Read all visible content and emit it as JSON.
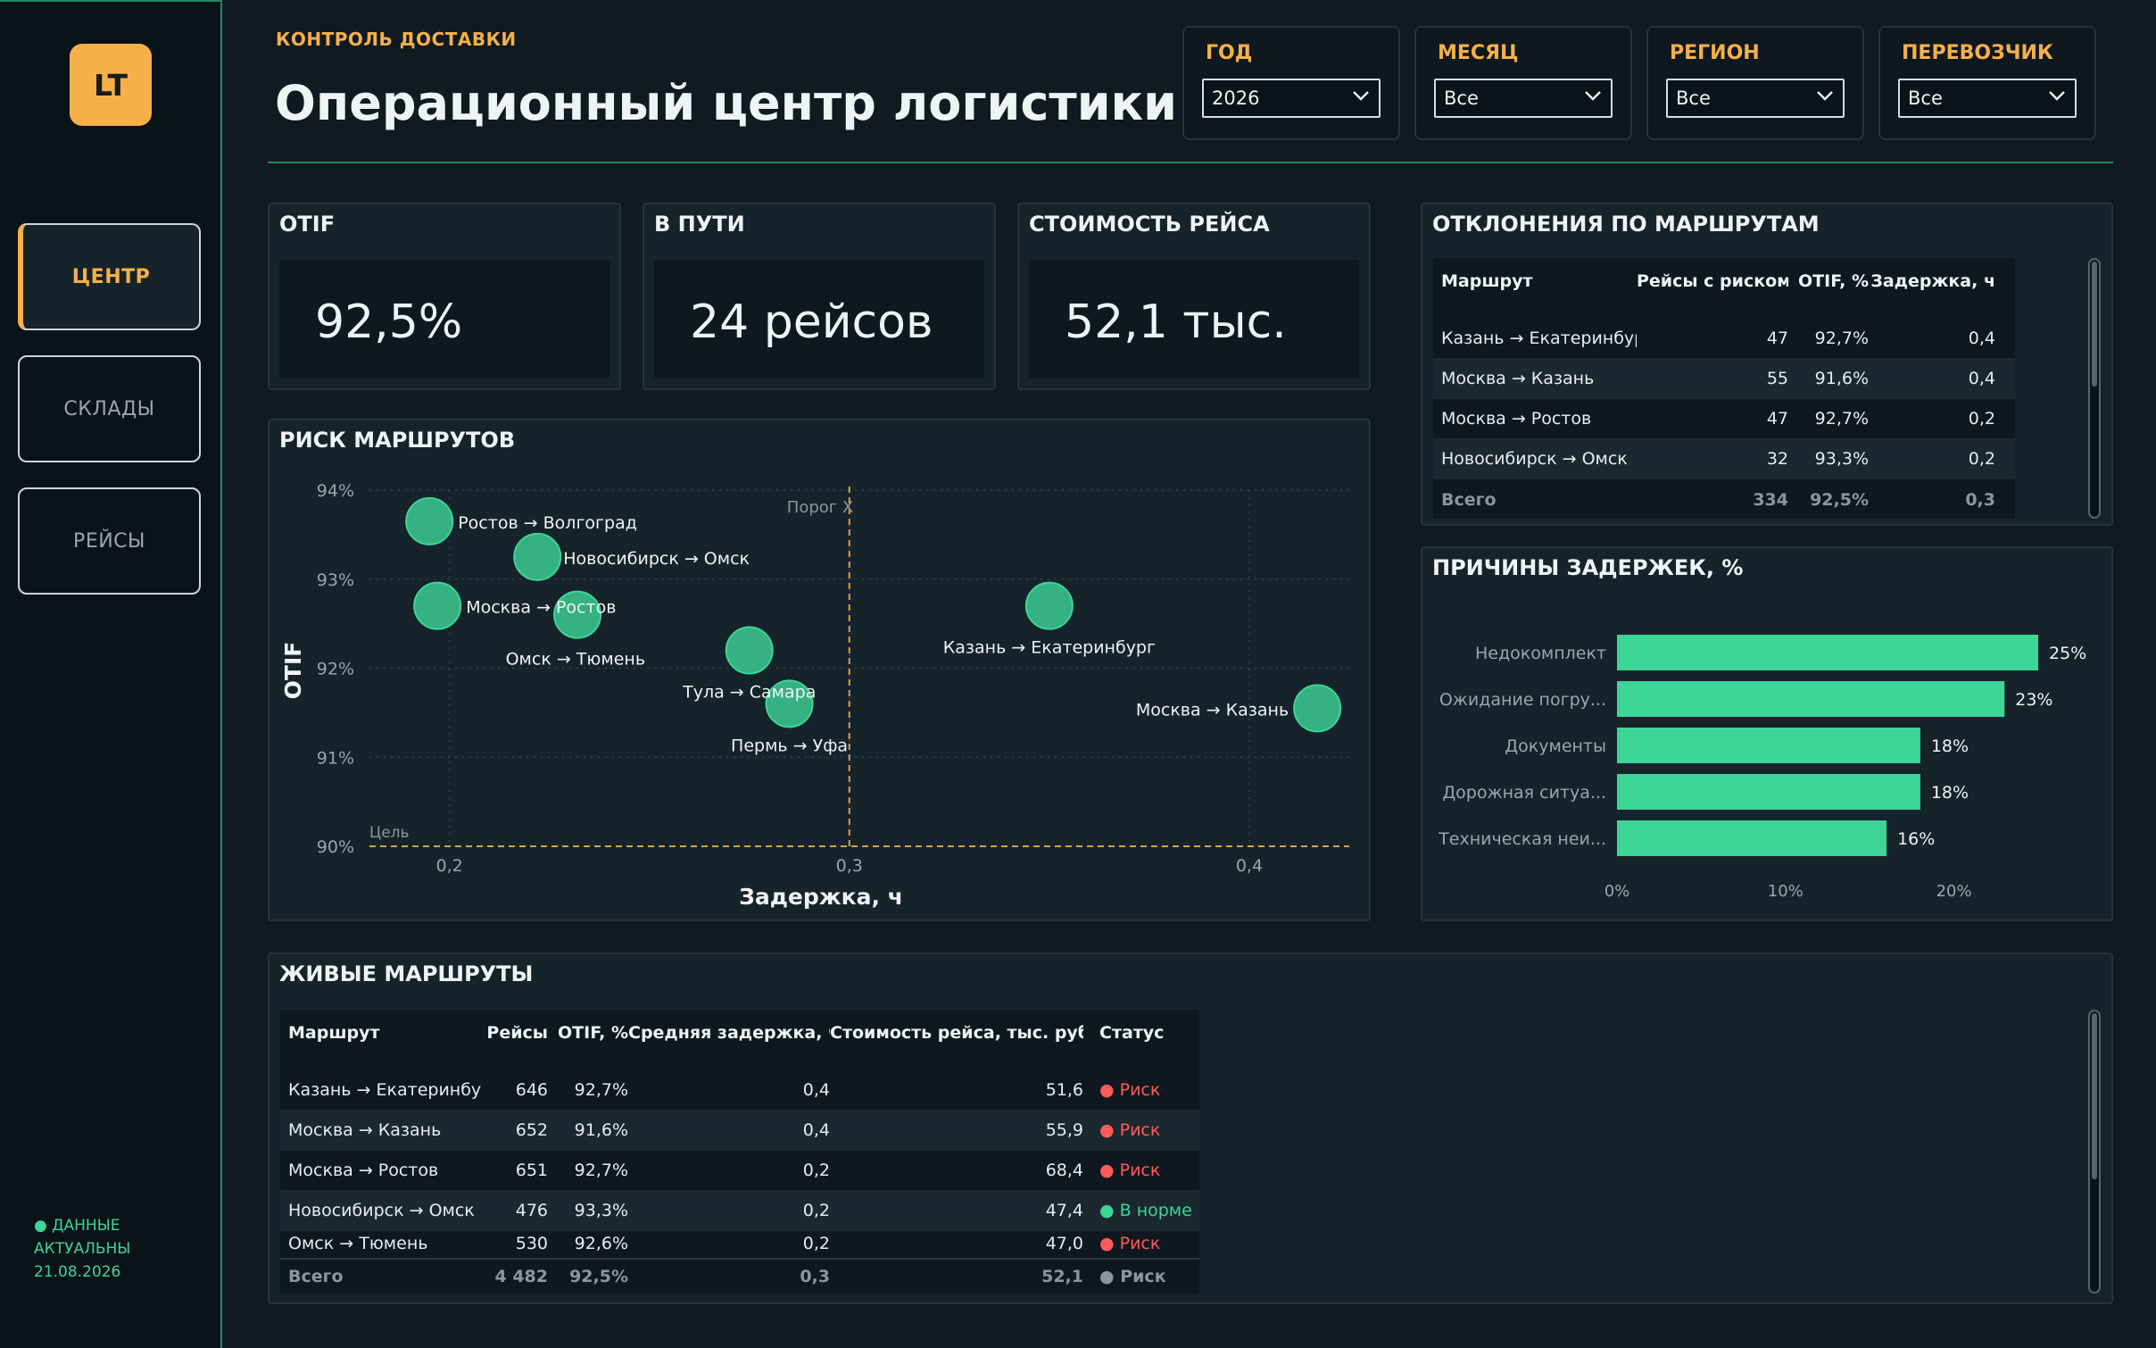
{
  "sidebar": {
    "logo": "LT",
    "items": [
      {
        "label": "ЦЕНТР",
        "active": true
      },
      {
        "label": "СКЛАДЫ",
        "active": false
      },
      {
        "label": "РЕЙСЫ",
        "active": false
      }
    ],
    "status_line1": "● ДАННЫЕ",
    "status_line2": "АКТУАЛЬНЫ",
    "status_date": "21.08.2026"
  },
  "header": {
    "kicker": "КОНТРОЛЬ ДОСТАВКИ",
    "title": "Операционный центр логистики"
  },
  "filters": [
    {
      "label": "ГОД",
      "value": "2026"
    },
    {
      "label": "МЕСЯЦ",
      "value": "Все"
    },
    {
      "label": "РЕГИОН",
      "value": "Все"
    },
    {
      "label": "ПЕРЕВОЗЧИК",
      "value": "Все"
    }
  ],
  "kpis": [
    {
      "title": "OTIF",
      "value": "92,5%"
    },
    {
      "title": "В ПУТИ",
      "value": "24 рейсов"
    },
    {
      "title": "СТОИМОСТЬ РЕЙСА",
      "value": "52,1 тыс."
    }
  ],
  "deviations": {
    "title": "ОТКЛОНЕНИЯ ПО МАРШРУТАМ",
    "columns": [
      "Маршрут",
      "Рейсы с риском",
      "OTIF, %",
      "Задержка, ч"
    ],
    "rows": [
      [
        "Казань → Екатеринбург",
        "47",
        "92,7%",
        "0,4"
      ],
      [
        "Москва → Казань",
        "55",
        "91,6%",
        "0,4"
      ],
      [
        "Москва → Ростов",
        "47",
        "92,7%",
        "0,2"
      ],
      [
        "Новосибирск → Омск",
        "32",
        "93,3%",
        "0,2"
      ]
    ],
    "total": [
      "Всего",
      "334",
      "92,5%",
      "0,3"
    ]
  },
  "risk_chart": {
    "title": "РИСК МАРШРУТОВ",
    "threshold_label": "Порог X",
    "target_label": "Цель",
    "colors": {
      "bubble": "#3dd598",
      "threshold": "#d9a04a",
      "grid": "#3a4a52"
    }
  },
  "causes_chart": {
    "title": "ПРИЧИНЫ ЗАДЕРЖЕК, %",
    "color": "#3dd598"
  },
  "chart_data": [
    {
      "type": "scatter",
      "title": "РИСК МАРШРУТОВ",
      "xlabel": "Задержка, ч",
      "ylabel": "OTIF",
      "xlim": [
        0.18,
        0.425
      ],
      "ylim": [
        90,
        94
      ],
      "x_ticks": [
        0.2,
        0.3,
        0.4
      ],
      "x_tick_labels": [
        "0,2",
        "0,3",
        "0,4"
      ],
      "y_ticks": [
        90,
        91,
        92,
        93,
        94
      ],
      "y_tick_labels": [
        "90%",
        "91%",
        "92%",
        "93%",
        "94%"
      ],
      "threshold_x": 0.3,
      "target_y": 90,
      "points": [
        {
          "label": "Ростов → Волгоград",
          "x": 0.195,
          "y": 93.65
        },
        {
          "label": "Новосибирск → Омск",
          "x": 0.222,
          "y": 93.25
        },
        {
          "label": "Москва → Ростов",
          "x": 0.197,
          "y": 92.7
        },
        {
          "label": "Омск → Тюмень",
          "x": 0.232,
          "y": 92.6
        },
        {
          "label": "Тула → Самара",
          "x": 0.275,
          "y": 92.2
        },
        {
          "label": "Пермь → Уфа",
          "x": 0.285,
          "y": 91.6
        },
        {
          "label": "Казань → Екатеринбург",
          "x": 0.35,
          "y": 92.7
        },
        {
          "label": "Москва → Казань",
          "x": 0.417,
          "y": 91.55
        }
      ]
    },
    {
      "type": "bar",
      "orientation": "horizontal",
      "title": "ПРИЧИНЫ ЗАДЕРЖЕК, %",
      "categories": [
        "Недокомплект",
        "Ожидание погру...",
        "Документы",
        "Дорожная ситуа...",
        "Техническая неи..."
      ],
      "values": [
        25,
        23,
        18,
        18,
        16
      ],
      "value_labels": [
        "25%",
        "23%",
        "18%",
        "18%",
        "16%"
      ],
      "xlim": [
        0,
        25
      ],
      "x_ticks": [
        0,
        10,
        20
      ],
      "x_tick_labels": [
        "0%",
        "10%",
        "20%"
      ]
    }
  ],
  "live_routes": {
    "title": "ЖИВЫЕ МАРШРУТЫ",
    "columns": [
      "Маршрут",
      "Рейсы",
      "OTIF, %",
      "Средняя задержка, ч",
      "Стоимость рейса, тыс. руб.",
      "Статус"
    ],
    "rows": [
      [
        "Казань → Екатеринбург",
        "646",
        "92,7%",
        "0,4",
        "51,6",
        "● Риск",
        "risk"
      ],
      [
        "Москва → Казань",
        "652",
        "91,6%",
        "0,4",
        "55,9",
        "● Риск",
        "risk"
      ],
      [
        "Москва → Ростов",
        "651",
        "92,7%",
        "0,2",
        "68,4",
        "● Риск",
        "risk"
      ],
      [
        "Новосибирск → Омск",
        "476",
        "93,3%",
        "0,2",
        "47,4",
        "● В норме",
        "ok"
      ],
      [
        "Омск → Тюмень",
        "530",
        "92,6%",
        "0,2",
        "47,0",
        "● Риск",
        "risk"
      ]
    ],
    "total": [
      "Всего",
      "4 482",
      "92,5%",
      "0,3",
      "52,1",
      "● Риск"
    ]
  }
}
